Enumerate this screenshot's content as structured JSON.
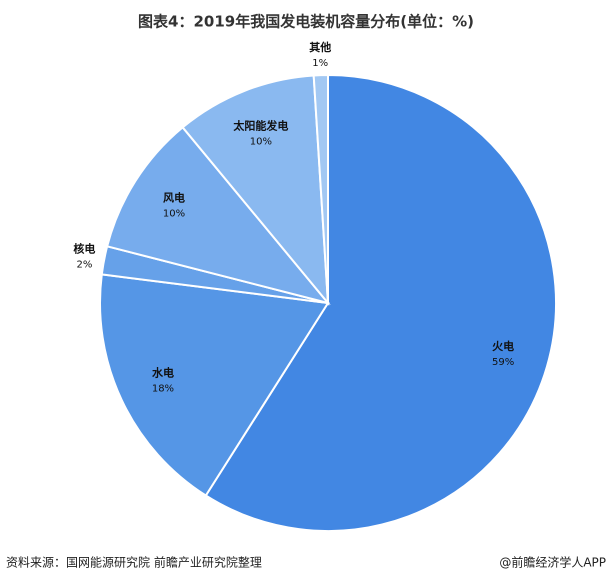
{
  "chart_data": {
    "type": "pie",
    "title": "图表4：2019年我国发电装机容量分布(单位：%)",
    "categories": [
      "火电",
      "水电",
      "核电",
      "风电",
      "太阳能发电",
      "其他"
    ],
    "values": [
      59,
      18,
      2,
      10,
      10,
      1
    ],
    "value_labels": [
      "59%",
      "18%",
      "2%",
      "10%",
      "10%",
      "1%"
    ],
    "colors": [
      "#4287e3",
      "#5596e6",
      "#66a1e9",
      "#77aced",
      "#8ab9f0",
      "#a2c8f3"
    ],
    "source": "资料来源：国网能源研究院 前瞻产业研究院整理",
    "credit": "@前瞻经济学人APP"
  }
}
